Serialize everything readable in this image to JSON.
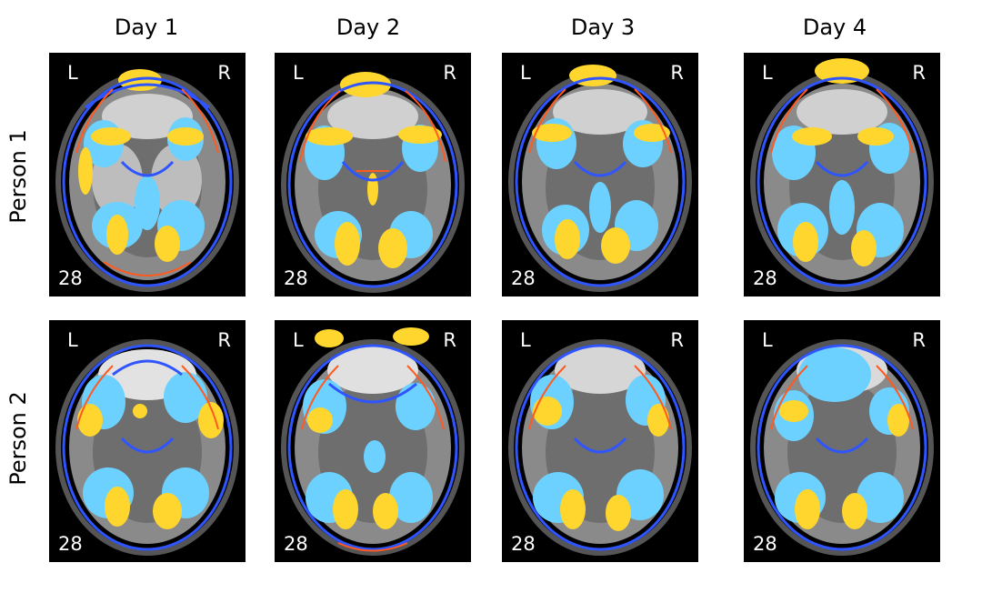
{
  "columns": [
    "Day 1",
    "Day 2",
    "Day 3",
    "Day 4"
  ],
  "rows": [
    "Person 1",
    "Person 2"
  ],
  "panel_labels": {
    "left": "L",
    "right": "R",
    "slice": "28"
  },
  "colors": {
    "yellow": "#ffd62e",
    "orange": "#ff5a1f",
    "lightblue": "#6cd1ff",
    "blue": "#2f55ff"
  }
}
